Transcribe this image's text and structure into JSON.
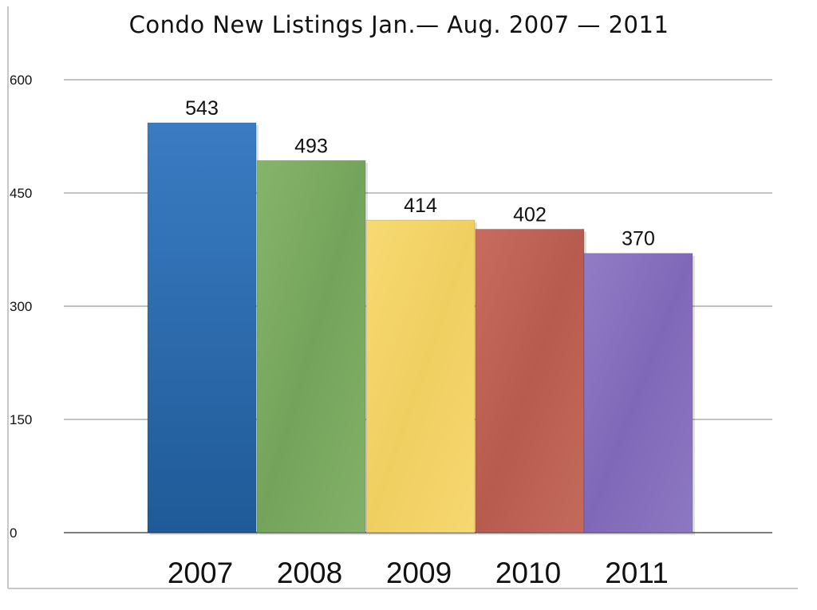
{
  "chart_data": {
    "type": "bar",
    "title": "Condo New Listings Jan.— Aug. 2007 — 2011",
    "categories": [
      "2007",
      "2008",
      "2009",
      "2010",
      "2011"
    ],
    "values": [
      543,
      493,
      414,
      402,
      370
    ],
    "value_labels": [
      "543",
      "493",
      "414",
      "402",
      "370"
    ],
    "yticks": [
      0,
      150,
      300,
      450,
      600
    ],
    "ytick_labels": [
      "0",
      "150",
      "300",
      "450",
      "600"
    ],
    "ylim": [
      0,
      600
    ],
    "grid": true,
    "legend": "none",
    "colors": [
      "#2f6fb5",
      "#7eab62",
      "#f3d46a",
      "#c16558",
      "#8a74bf"
    ],
    "xlabel": "",
    "ylabel": ""
  }
}
